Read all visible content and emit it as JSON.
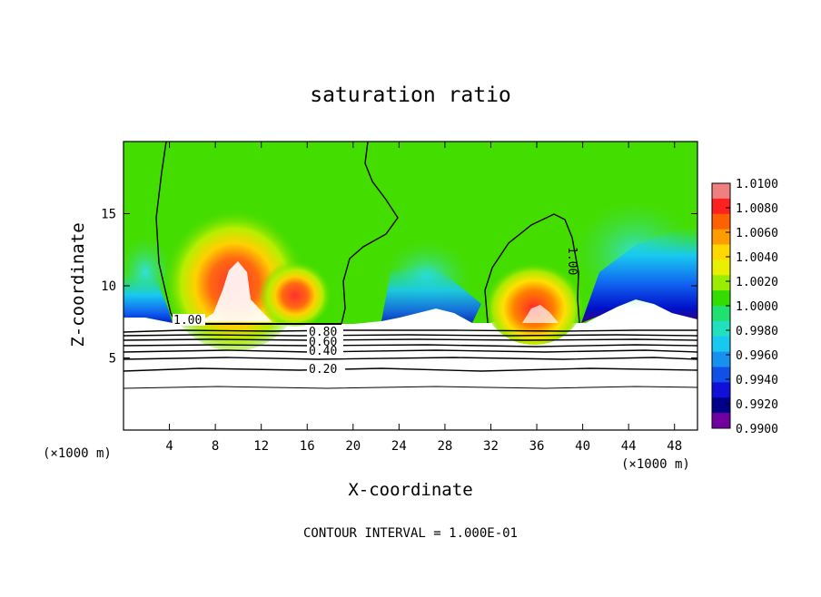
{
  "chart_data": {
    "type": "heatmap",
    "title": "saturation ratio",
    "xlabel": "X-coordinate",
    "ylabel": "Z-coordinate",
    "x_unit_left": "(×1000 m)",
    "x_unit_right": "(×1000 m)",
    "xlim": [
      0,
      50
    ],
    "ylim": [
      0,
      20
    ],
    "x_ticks": [
      4,
      8,
      12,
      16,
      20,
      24,
      28,
      32,
      36,
      40,
      44,
      48
    ],
    "y_ticks": [
      5,
      10,
      15
    ],
    "colorbar": {
      "min": 0.99,
      "max": 1.01,
      "tick_labels": [
        "1.0100",
        "1.0080",
        "1.0060",
        "1.0040",
        "1.0020",
        "1.0000",
        "0.9980",
        "0.9960",
        "0.9940",
        "0.9920",
        "0.9900"
      ],
      "colors": [
        "#f08080",
        "#ff2020",
        "#ff6000",
        "#ff9c00",
        "#ffd800",
        "#e8f000",
        "#9aec00",
        "#33dd00",
        "#20e070",
        "#20e0c0",
        "#18c8f0",
        "#1890f0",
        "#1050e8",
        "#1010d8",
        "#00008a",
        "#7000a0"
      ]
    },
    "contour_labels": [
      "1.00",
      "1.00",
      "0.80",
      "0.60",
      "0.40",
      "0.20"
    ],
    "footer": "CONTOUR INTERVAL = 1.000E-01"
  }
}
